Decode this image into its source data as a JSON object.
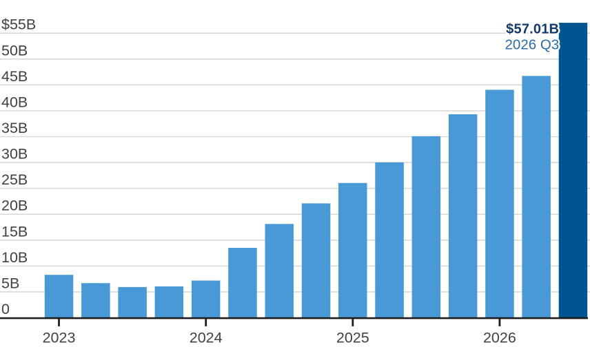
{
  "chart_data": {
    "type": "bar",
    "title": "",
    "unit": "USD billions",
    "categories": [
      "2023 Q1",
      "2023 Q2",
      "2023 Q3",
      "2023 Q4",
      "2024 Q1",
      "2024 Q2",
      "2024 Q3",
      "2024 Q4",
      "2025 Q1",
      "2025 Q2",
      "2025 Q3",
      "2025 Q4",
      "2026 Q1",
      "2026 Q2",
      "2026 Q3"
    ],
    "values": [
      8.29,
      6.7,
      5.93,
      6.05,
      7.19,
      13.51,
      18.12,
      22.1,
      26.04,
      30.04,
      35.08,
      39.33,
      44.06,
      46.74,
      57.01
    ],
    "ylim": [
      0,
      60
    ],
    "grid": true,
    "legend": false,
    "y_axis": {
      "ticks": [
        {
          "value": 55,
          "label": "$55B"
        },
        {
          "value": 50,
          "label": "50B"
        },
        {
          "value": 45,
          "label": "45B"
        },
        {
          "value": 40,
          "label": "40B"
        },
        {
          "value": 35,
          "label": "35B"
        },
        {
          "value": 30,
          "label": "30B"
        },
        {
          "value": 25,
          "label": "25B"
        },
        {
          "value": 20,
          "label": "20B"
        },
        {
          "value": 15,
          "label": "15B"
        },
        {
          "value": 10,
          "label": "10B"
        },
        {
          "value": 5,
          "label": "5B"
        },
        {
          "value": 0,
          "label": "0"
        }
      ]
    },
    "x_axis": {
      "ticks": [
        {
          "bar_index": 0,
          "label": "2023"
        },
        {
          "bar_index": 4,
          "label": "2024"
        },
        {
          "bar_index": 8,
          "label": "2025"
        },
        {
          "bar_index": 12,
          "label": "2026"
        }
      ]
    },
    "highlight": {
      "bar_index": 14,
      "value_label": "$57.01B",
      "period_label": "2026 Q3"
    },
    "colors": {
      "bar": "#4899d6",
      "highlight_bar": "#005591",
      "value_label": "#143a6d",
      "period_label": "#2f6ba8",
      "gridline": "#d9d9d9",
      "axis_label": "#414141",
      "baseline": "#1c1c1c",
      "background": "#ffffff"
    }
  }
}
